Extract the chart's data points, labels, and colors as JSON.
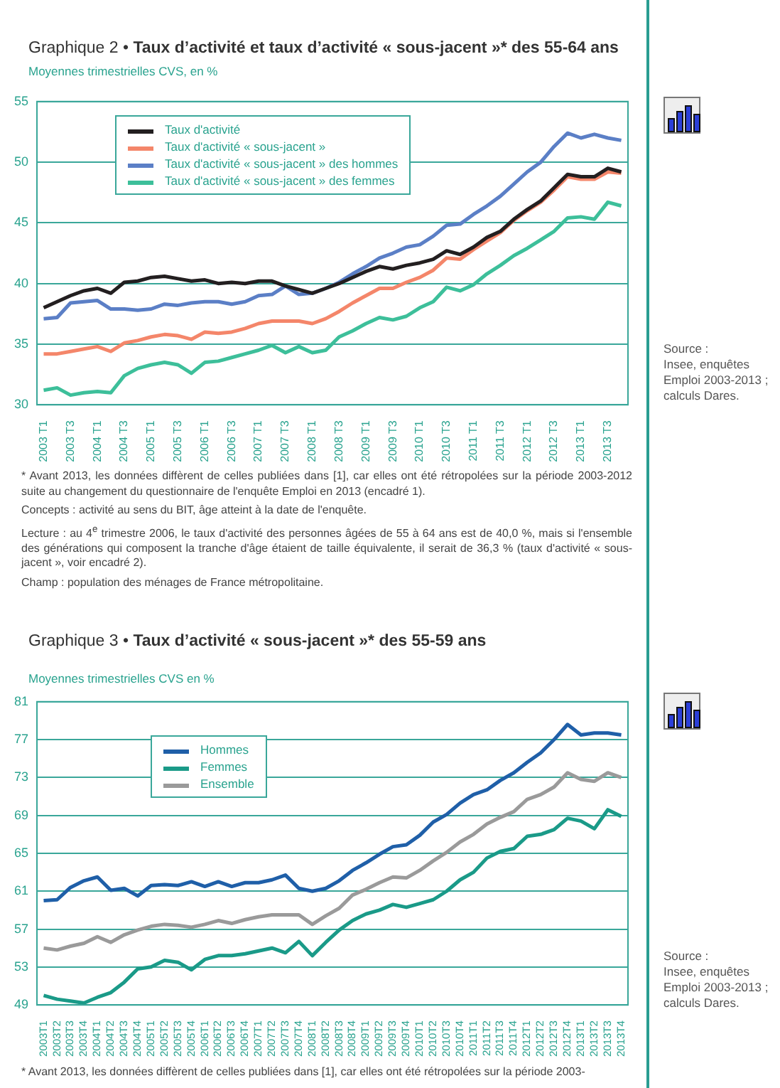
{
  "chart_data": [
    {
      "type": "line",
      "title": "Graphique 2 • Taux d’activité et taux d’activité « sous-jacent »* des 55-64 ans",
      "subtitle": "Moyennes trimestrielles CVS, en %",
      "categories": [
        "2003 T1",
        null,
        "2003 T3",
        null,
        "2004 T1",
        null,
        "2004 T3",
        null,
        "2005 T1",
        null,
        "2005 T3",
        null,
        "2006 T1",
        null,
        "2006 T3",
        null,
        "2007 T1",
        null,
        "2007 T3",
        null,
        "2008 T1",
        null,
        "2008 T3",
        null,
        "2009 T1",
        null,
        "2009 T3",
        null,
        "2010 T1",
        null,
        "2010 T3",
        null,
        "2011 T1",
        null,
        "2011 T3",
        null,
        "2012 T1",
        null,
        "2012 T3",
        null,
        "2013 T1",
        null,
        "2013 T3",
        null
      ],
      "series": [
        {
          "name": "Taux d'activité",
          "color": "#231f20",
          "values": [
            38.0,
            38.5,
            39.0,
            39.4,
            39.6,
            39.2,
            40.1,
            40.2,
            40.5,
            40.6,
            40.4,
            40.2,
            40.3,
            40.0,
            40.1,
            40.0,
            40.2,
            40.2,
            39.8,
            39.5,
            39.2,
            39.6,
            40.0,
            40.5,
            41.0,
            41.4,
            41.2,
            41.5,
            41.7,
            42.0,
            42.7,
            42.4,
            43.0,
            43.8,
            44.3,
            45.3,
            46.1,
            46.8,
            47.9,
            49.0,
            48.8,
            48.8,
            49.5,
            49.2
          ]
        },
        {
          "name": "Taux d'activité « sous-jacent »",
          "color": "#f4866a",
          "values": [
            34.2,
            34.2,
            34.4,
            34.6,
            34.8,
            34.4,
            35.1,
            35.3,
            35.6,
            35.8,
            35.7,
            35.4,
            36.0,
            35.9,
            36.0,
            36.3,
            36.7,
            36.9,
            36.9,
            36.9,
            36.7,
            37.1,
            37.7,
            38.4,
            39.0,
            39.6,
            39.6,
            40.1,
            40.5,
            41.1,
            42.1,
            42.0,
            42.8,
            43.5,
            44.2,
            45.2,
            46.0,
            46.7,
            47.7,
            48.8,
            48.6,
            48.6,
            49.2,
            49.1
          ]
        },
        {
          "name": "Taux d'activité « sous-jacent » des hommes",
          "color": "#5b7fc6",
          "values": [
            37.1,
            37.2,
            38.4,
            38.5,
            38.6,
            37.9,
            37.9,
            37.8,
            37.9,
            38.3,
            38.2,
            38.4,
            38.5,
            38.5,
            38.3,
            38.5,
            39.0,
            39.1,
            39.8,
            39.1,
            39.2,
            39.6,
            40.1,
            40.8,
            41.4,
            42.1,
            42.5,
            43.0,
            43.2,
            43.9,
            44.8,
            44.9,
            45.7,
            46.4,
            47.2,
            48.2,
            49.2,
            50.0,
            51.3,
            52.4,
            52.0,
            52.3,
            52.0,
            51.8
          ]
        },
        {
          "name": "Taux d'activité « sous-jacent » des femmes",
          "color": "#3dbf9a",
          "values": [
            31.2,
            31.4,
            30.8,
            31.0,
            31.1,
            31.0,
            32.4,
            33.0,
            33.3,
            33.5,
            33.3,
            32.6,
            33.5,
            33.6,
            33.9,
            34.2,
            34.5,
            34.9,
            34.3,
            34.8,
            34.3,
            34.5,
            35.6,
            36.1,
            36.7,
            37.2,
            37.0,
            37.3,
            38.0,
            38.5,
            39.7,
            39.4,
            39.9,
            40.8,
            41.5,
            42.3,
            42.9,
            43.6,
            44.3,
            45.4,
            45.5,
            45.3,
            46.7,
            46.4
          ]
        }
      ],
      "ylim": [
        30,
        55
      ],
      "yticks": [
        30,
        35,
        40,
        45,
        50,
        55
      ],
      "grid": "y",
      "legend": "top left",
      "marker": "none",
      "line_style": "solid",
      "annotations": [
        "Source :\nInsee, enquêtes Emploi 2003-2013 ; calculs Dares.",
        "* Avant 2013, les données diffèrent de celles publiées dans [1], car elles ont été rétropolées sur la période 2003-2012 suite au changement du questionnaire de l'enquête Emploi en 2013 (encadré 1).",
        "Concepts : activité au sens du BIT, âge atteint à la date de l'enquête.",
        "Lecture : au 4$^{e}$ trimestre 2006, le taux d'activité des personnes âgées de 55 à 64 ans est de 40,0 %, mais si l'ensemble des générations qui composent la tranche d'âge étaient de taille équivalente, il serait de 36,3 % (taux d'activité « sous-jacent », voir encadré 2).",
        "Champ : population des ménages de France métropolitaine."
      ]
    },
    {
      "type": "line",
      "title": "Graphique 3 • Taux d’activité « sous-jacent »* des 55-59 ans",
      "subtitle": "Moyennes trimestrielles CVS en %",
      "categories": [
        "2003T1",
        "2003T2",
        "2003T3",
        "2003T4",
        "2004T1",
        "2004T2",
        "2004T3",
        "2004T4",
        "2005T1",
        "2005T2",
        "2005T3",
        "2005T4",
        "2006T1",
        "2006T2",
        "2006T3",
        "2006T4",
        "2007T1",
        "2007T2",
        "2007T3",
        "2007T4",
        "2008T1",
        "2008T2",
        "2008T3",
        "2008T4",
        "2009T1",
        "2009T2",
        "2009T3",
        "2009T4",
        "2010T1",
        "2010T2",
        "2010T3",
        "2010T4",
        "2011T1",
        "2011T2",
        "2011T3",
        "2011T4",
        "2012T1",
        "2012T2",
        "2012T3",
        "2012T4",
        "2013T1",
        "2013T2",
        "2013T3",
        "2013T4"
      ],
      "series": [
        {
          "name": "Hommes",
          "color": "#1f5fa8",
          "values": [
            60.0,
            60.1,
            61.4,
            62.1,
            62.5,
            61.1,
            61.3,
            60.5,
            61.6,
            61.7,
            61.6,
            62.0,
            61.5,
            62.0,
            61.5,
            61.9,
            61.9,
            62.2,
            62.7,
            61.3,
            61.0,
            61.3,
            62.1,
            63.2,
            64.0,
            64.9,
            65.7,
            65.9,
            66.9,
            68.3,
            69.1,
            70.3,
            71.2,
            71.7,
            72.7,
            73.5,
            74.6,
            75.6,
            77.0,
            78.6,
            77.5,
            77.7,
            77.7,
            77.5
          ]
        },
        {
          "name": "Femmes",
          "color": "#1a9a88",
          "values": [
            50.0,
            49.6,
            49.4,
            49.2,
            49.8,
            50.3,
            51.4,
            52.8,
            53.0,
            53.7,
            53.5,
            52.7,
            53.8,
            54.2,
            54.2,
            54.4,
            54.7,
            55.0,
            54.5,
            55.7,
            54.2,
            55.6,
            56.9,
            57.9,
            58.6,
            59.0,
            59.6,
            59.3,
            59.7,
            60.1,
            61.0,
            62.2,
            63.0,
            64.5,
            65.2,
            65.5,
            66.8,
            67.0,
            67.5,
            68.7,
            68.4,
            67.6,
            69.6,
            68.9
          ]
        },
        {
          "name": "Ensemble",
          "color": "#9a9a9a",
          "values": [
            55.0,
            54.8,
            55.2,
            55.5,
            56.2,
            55.6,
            56.4,
            56.9,
            57.3,
            57.5,
            57.4,
            57.2,
            57.5,
            57.9,
            57.6,
            58.0,
            58.3,
            58.5,
            58.5,
            58.5,
            57.5,
            58.4,
            59.2,
            60.6,
            61.2,
            61.9,
            62.5,
            62.4,
            63.2,
            64.2,
            65.1,
            66.2,
            67.0,
            68.1,
            68.8,
            69.4,
            70.7,
            71.2,
            72.0,
            73.5,
            72.8,
            72.6,
            73.5,
            73.0
          ]
        }
      ],
      "ylim": [
        49,
        81
      ],
      "yticks": [
        49,
        53,
        57,
        61,
        65,
        69,
        73,
        77,
        81
      ],
      "grid": "y",
      "legend": "top left",
      "marker": "none",
      "line_style": "solid",
      "annotations": [
        "Source :\nInsee, enquêtes Emploi 2003-2013 ; calculs Dares.",
        "* Avant 2013, les données diffèrent de celles publiées dans [1], car elles ont été rétropolées sur la période 2003-"
      ]
    }
  ]
}
